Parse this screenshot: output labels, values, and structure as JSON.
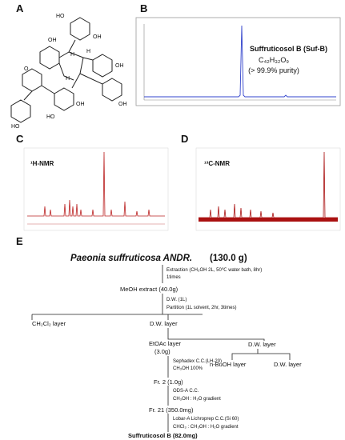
{
  "panels": {
    "A": {
      "label": "A",
      "structure_labels": [
        "HO",
        "OH",
        "OH",
        "H",
        "H",
        "O",
        "H",
        "OH",
        "HO",
        "OH",
        "OH",
        "HO"
      ]
    },
    "B": {
      "label": "B",
      "compound": "Suffruticosol B (Suf-B)",
      "formula": "C₄₂H₃₂O₉",
      "purity": "(> 99.9% purity)"
    },
    "C": {
      "label": "C",
      "title": "¹H-NMR"
    },
    "D": {
      "label": "D",
      "title": "¹³C-NMR"
    },
    "E": {
      "label": "E",
      "source": "Paeonia suffruticosa ANDR.",
      "amount": "(130.0 g)",
      "nodes": [
        "MeOH extract (40.0g)",
        "CH₂Cl₂ layer",
        "D.W. layer",
        "EtOAc layer",
        "(3.0g)",
        "D.W. layer",
        "n-BuOH layer",
        "D.W. layer",
        "Fr. 2 (1.0g)",
        "Fr. 21 (350.0mg)",
        "Suffruticosol B (82.0mg)"
      ],
      "conditions": [
        "Extraction (CH₃OH 2L, 50℃ water bath, 8hr)",
        "1times",
        "D.W. (1L)",
        "Partition (1L solvent, 2hr, 3times)",
        "Sephadex C.C.(LH-20)",
        "CH₃OH 100%",
        "ODS-A C.C.",
        "CH₃OH : H₂O gradient",
        "Lobar-A Lichroprep C.C.(Si 60)",
        "CHCl₃ : CH₃OH : H₂O gradient"
      ]
    }
  }
}
